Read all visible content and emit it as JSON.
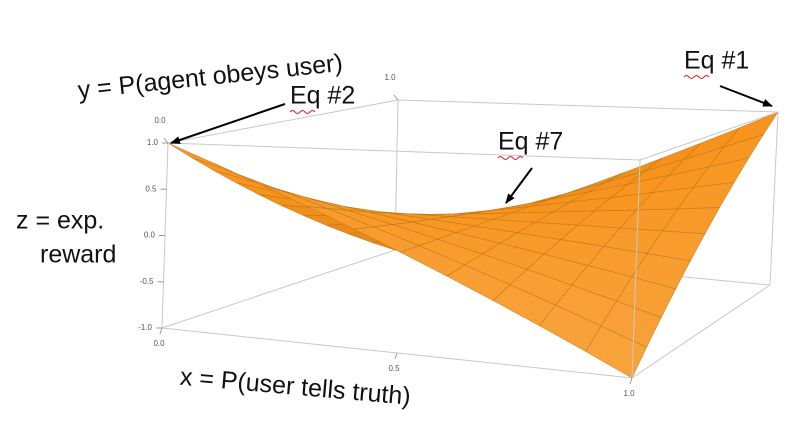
{
  "chart_data": {
    "type": "surface",
    "color": "#f7941d",
    "xlabel": "x = P(user tells truth)",
    "ylabel": "y = P(agent obeys user)",
    "zlabel": [
      "z = exp.",
      "reward"
    ],
    "annotations": [
      "Eq #2",
      "Eq #7",
      "Eq #1"
    ],
    "x": [
      0,
      0.1,
      0.2,
      0.3,
      0.4,
      0.5,
      0.6,
      0.7,
      0.8,
      0.9,
      1
    ],
    "y": [
      0,
      0.1,
      0.2,
      0.3,
      0.4,
      0.5,
      0.6,
      0.7,
      0.8,
      0.9,
      1
    ],
    "z": [
      [
        1,
        0.8,
        0.6,
        0.4,
        0.2,
        0,
        -0.2,
        -0.4,
        -0.6,
        -0.8,
        -1
      ],
      [
        0.8,
        0.64,
        0.48,
        0.32,
        0.16,
        0,
        -0.16,
        -0.32,
        -0.48,
        -0.64,
        -0.8
      ],
      [
        0.6,
        0.48,
        0.36,
        0.24,
        0.12,
        0,
        -0.12,
        -0.24,
        -0.36,
        -0.48,
        -0.6
      ],
      [
        0.4,
        0.32,
        0.24,
        0.16,
        0.08,
        0,
        -0.08,
        -0.16,
        -0.24,
        -0.32,
        -0.4
      ],
      [
        0.2,
        0.16,
        0.12,
        0.08,
        0.04,
        0,
        -0.04,
        -0.08,
        -0.12,
        -0.16,
        -0.2
      ],
      [
        0,
        0,
        0,
        0,
        0,
        0,
        0,
        0,
        0,
        0,
        0
      ],
      [
        -0.2,
        -0.16,
        -0.12,
        -0.08,
        -0.04,
        0,
        0.04,
        0.08,
        0.12,
        0.16,
        0.2
      ],
      [
        -0.4,
        -0.32,
        -0.24,
        -0.16,
        -0.08,
        0,
        0.08,
        0.16,
        0.24,
        0.32,
        0.4
      ],
      [
        -0.6,
        -0.48,
        -0.36,
        -0.24,
        -0.12,
        0,
        0.12,
        0.24,
        0.36,
        0.48,
        0.6
      ],
      [
        -0.8,
        -0.64,
        -0.48,
        -0.32,
        -0.16,
        0,
        0.16,
        0.32,
        0.48,
        0.64,
        0.8
      ],
      [
        -1,
        -0.8,
        -0.6,
        -0.4,
        -0.2,
        0,
        0.2,
        0.4,
        0.6,
        0.8,
        1
      ]
    ],
    "xlim": [
      0,
      1
    ],
    "ylim": [
      0,
      1
    ],
    "zlim": [
      -1,
      1
    ],
    "xticks": [
      {
        "value": 0,
        "label": "0.0"
      },
      {
        "value": 0.5,
        "label": "0.5"
      },
      {
        "value": 1,
        "label": "1.0"
      }
    ],
    "yticks": [
      {
        "value": 0,
        "label": "0.0"
      },
      {
        "value": 1,
        "label": "1.0"
      }
    ],
    "zticks": [
      {
        "value": -1,
        "label": "-1.0"
      },
      {
        "value": -0.5,
        "label": "-0.5"
      },
      {
        "value": 0,
        "label": "0.0"
      },
      {
        "value": 0.5,
        "label": "0.5"
      },
      {
        "value": 1,
        "label": "1.0"
      }
    ]
  }
}
